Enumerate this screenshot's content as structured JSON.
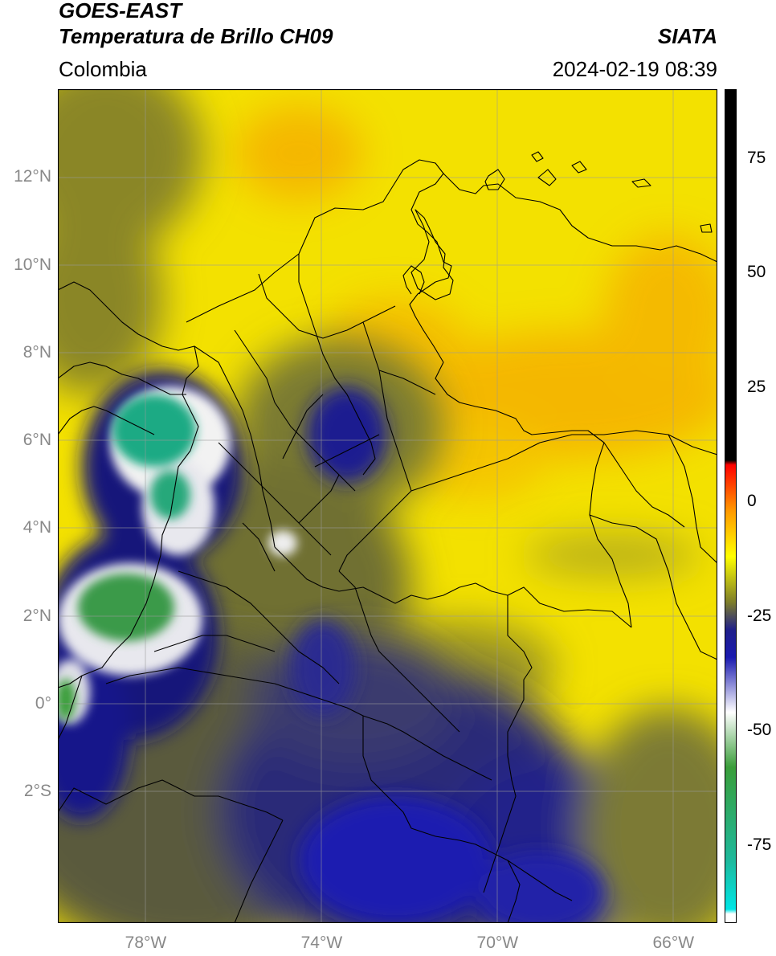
{
  "header": {
    "satellite": "GOES-EAST",
    "product": "Temperatura de Brillo CH09",
    "region": "Colombia",
    "source": "SIATA",
    "timestamp": "2024-02-19 08:39"
  },
  "axes": {
    "lat_labels": [
      "12°N",
      "10°N",
      "8°N",
      "6°N",
      "4°N",
      "2°N",
      "0°",
      "2°S"
    ],
    "lon_labels": [
      "78°W",
      "74°W",
      "70°W",
      "66°W"
    ],
    "lat_values": [
      12,
      10,
      8,
      6,
      4,
      2,
      0,
      -2
    ],
    "lon_values": [
      -78,
      -74,
      -70,
      -66
    ],
    "extent": {
      "lon_min": -80,
      "lon_max": -65,
      "lat_min": -5,
      "lat_max": 14
    },
    "grid": true
  },
  "colorbar": {
    "labels": [
      "75",
      "50",
      "25",
      "0",
      "-25",
      "-50",
      "-75"
    ],
    "values": [
      75,
      50,
      25,
      0,
      -25,
      -50,
      -75
    ],
    "range": [
      -92,
      90
    ],
    "stops": [
      {
        "value": 90,
        "color": "#000000"
      },
      {
        "value": 9,
        "color": "#000000"
      },
      {
        "value": 8,
        "color": "#ff0000"
      },
      {
        "value": -2,
        "color": "#ff9900"
      },
      {
        "value": -12,
        "color": "#ffff00"
      },
      {
        "value": -22,
        "color": "#7d7d2a"
      },
      {
        "value": -28,
        "color": "#1f1f8a"
      },
      {
        "value": -34,
        "color": "#1a1ab0"
      },
      {
        "value": -46,
        "color": "#ffffff"
      },
      {
        "value": -58,
        "color": "#3a9e3a"
      },
      {
        "value": -78,
        "color": "#1fb89a"
      },
      {
        "value": -89,
        "color": "#00e5e5"
      },
      {
        "value": -90,
        "color": "#ffffff"
      }
    ]
  },
  "colors": {
    "background_warm": "#f5e400",
    "orange": "#f5a800",
    "olive": "#7d7a2a",
    "deep_blue": "#1b1b88",
    "green": "#2e9e64",
    "border": "#000000",
    "grid": "#9a9a9a"
  }
}
